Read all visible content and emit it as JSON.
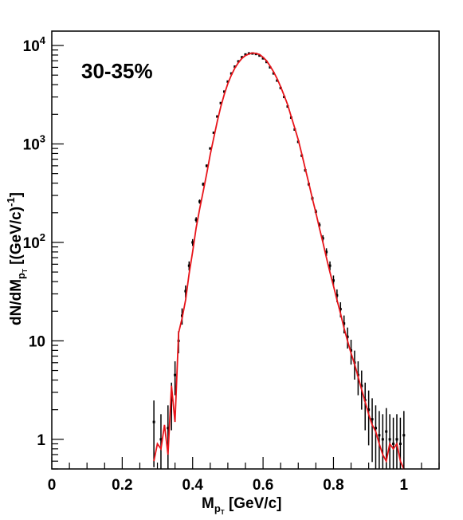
{
  "chart_data": {
    "type": "scatter",
    "annotation": "30-35%",
    "xlabel": {
      "main": "M",
      "sub": "p",
      "subsub": "T",
      "unit": " [GeV/c]"
    },
    "ylabel": {
      "main": "dN/dM",
      "sub": "p",
      "subsub": "T",
      "unit_open": "  [(GeV/c)",
      "unit_sup": "-1",
      "unit_close": "]"
    },
    "xlim": [
      0,
      1.1
    ],
    "ylim": [
      0.5,
      14000
    ],
    "yscale": "log",
    "x_ticks": [
      {
        "value": 0,
        "label": "0"
      },
      {
        "value": 0.2,
        "label": "0.2"
      },
      {
        "value": 0.4,
        "label": "0.4"
      },
      {
        "value": 0.6,
        "label": "0.6"
      },
      {
        "value": 0.8,
        "label": "0.8"
      },
      {
        "value": 1.0,
        "label": "1"
      }
    ],
    "y_ticks": [
      {
        "value": 1,
        "base": "1",
        "exp": ""
      },
      {
        "value": 10,
        "base": "10",
        "exp": ""
      },
      {
        "value": 100,
        "base": "10",
        "exp": "2"
      },
      {
        "value": 1000,
        "base": "10",
        "exp": "3"
      },
      {
        "value": 10000,
        "base": "10",
        "exp": "4"
      }
    ],
    "colors": {
      "data": "#000000",
      "model": "#e8141a",
      "axis": "#000000"
    },
    "grid": false,
    "series": [
      {
        "style": "black-points-with-error-bars",
        "x": [
          0.29,
          0.31,
          0.33,
          0.34,
          0.35,
          0.36,
          0.37,
          0.38,
          0.39,
          0.4,
          0.41,
          0.42,
          0.43,
          0.44,
          0.45,
          0.46,
          0.47,
          0.48,
          0.49,
          0.5,
          0.51,
          0.52,
          0.53,
          0.54,
          0.55,
          0.56,
          0.57,
          0.58,
          0.59,
          0.6,
          0.61,
          0.62,
          0.63,
          0.64,
          0.65,
          0.66,
          0.67,
          0.68,
          0.69,
          0.7,
          0.71,
          0.72,
          0.73,
          0.74,
          0.75,
          0.76,
          0.77,
          0.78,
          0.79,
          0.8,
          0.81,
          0.82,
          0.83,
          0.84,
          0.85,
          0.86,
          0.87,
          0.88,
          0.89,
          0.9,
          0.91,
          0.92,
          0.93,
          0.94,
          0.95,
          0.96,
          0.97,
          0.98,
          0.99,
          1.0
        ],
        "y": [
          1.5,
          1.0,
          1.3,
          2.5,
          4.5,
          10,
          18,
          32,
          58,
          100,
          170,
          260,
          390,
          600,
          900,
          1300,
          1900,
          2600,
          3400,
          4300,
          5200,
          6100,
          6900,
          7600,
          8100,
          8300,
          8300,
          8200,
          7900,
          7400,
          6800,
          6000,
          5200,
          4400,
          3700,
          3000,
          2400,
          1850,
          1400,
          1050,
          760,
          540,
          390,
          280,
          205,
          150,
          110,
          80,
          58,
          41,
          29,
          21,
          15,
          11,
          8,
          6,
          4.5,
          3.5,
          2.5,
          2.0,
          1.6,
          1.3,
          1.1,
          1.0,
          1.2,
          1.0,
          0.9,
          1.0,
          0.9,
          1.1
        ]
      },
      {
        "style": "red-line",
        "x": [
          0.29,
          0.3,
          0.31,
          0.32,
          0.33,
          0.34,
          0.35,
          0.36,
          0.37,
          0.38,
          0.39,
          0.4,
          0.41,
          0.42,
          0.43,
          0.44,
          0.45,
          0.46,
          0.47,
          0.48,
          0.49,
          0.5,
          0.51,
          0.52,
          0.53,
          0.54,
          0.55,
          0.56,
          0.57,
          0.58,
          0.59,
          0.6,
          0.61,
          0.62,
          0.63,
          0.64,
          0.65,
          0.66,
          0.67,
          0.68,
          0.69,
          0.7,
          0.71,
          0.72,
          0.73,
          0.74,
          0.75,
          0.76,
          0.77,
          0.78,
          0.79,
          0.8,
          0.81,
          0.82,
          0.83,
          0.84,
          0.85,
          0.86,
          0.87,
          0.88,
          0.89,
          0.9,
          0.91,
          0.92,
          0.93,
          0.94,
          0.95,
          0.96,
          0.97,
          0.98,
          0.99,
          1.0
        ],
        "y": [
          0.6,
          0.9,
          0.8,
          1.4,
          0.7,
          3.5,
          1.5,
          12,
          17,
          26,
          48,
          80,
          140,
          220,
          330,
          500,
          780,
          1150,
          1700,
          2400,
          3200,
          4100,
          5000,
          5900,
          6700,
          7400,
          7900,
          8200,
          8400,
          8300,
          8100,
          7600,
          7000,
          6200,
          5400,
          4600,
          3800,
          3100,
          2500,
          1900,
          1450,
          1100,
          790,
          560,
          400,
          280,
          200,
          140,
          100,
          70,
          50,
          36,
          26,
          19,
          13.5,
          10,
          7.5,
          5.8,
          4.3,
          3.2,
          2.4,
          1.8,
          1.4,
          1.2,
          0.9,
          0.7,
          0.6,
          0.9,
          0.8,
          0.9,
          0.6,
          0.5
        ]
      }
    ]
  }
}
